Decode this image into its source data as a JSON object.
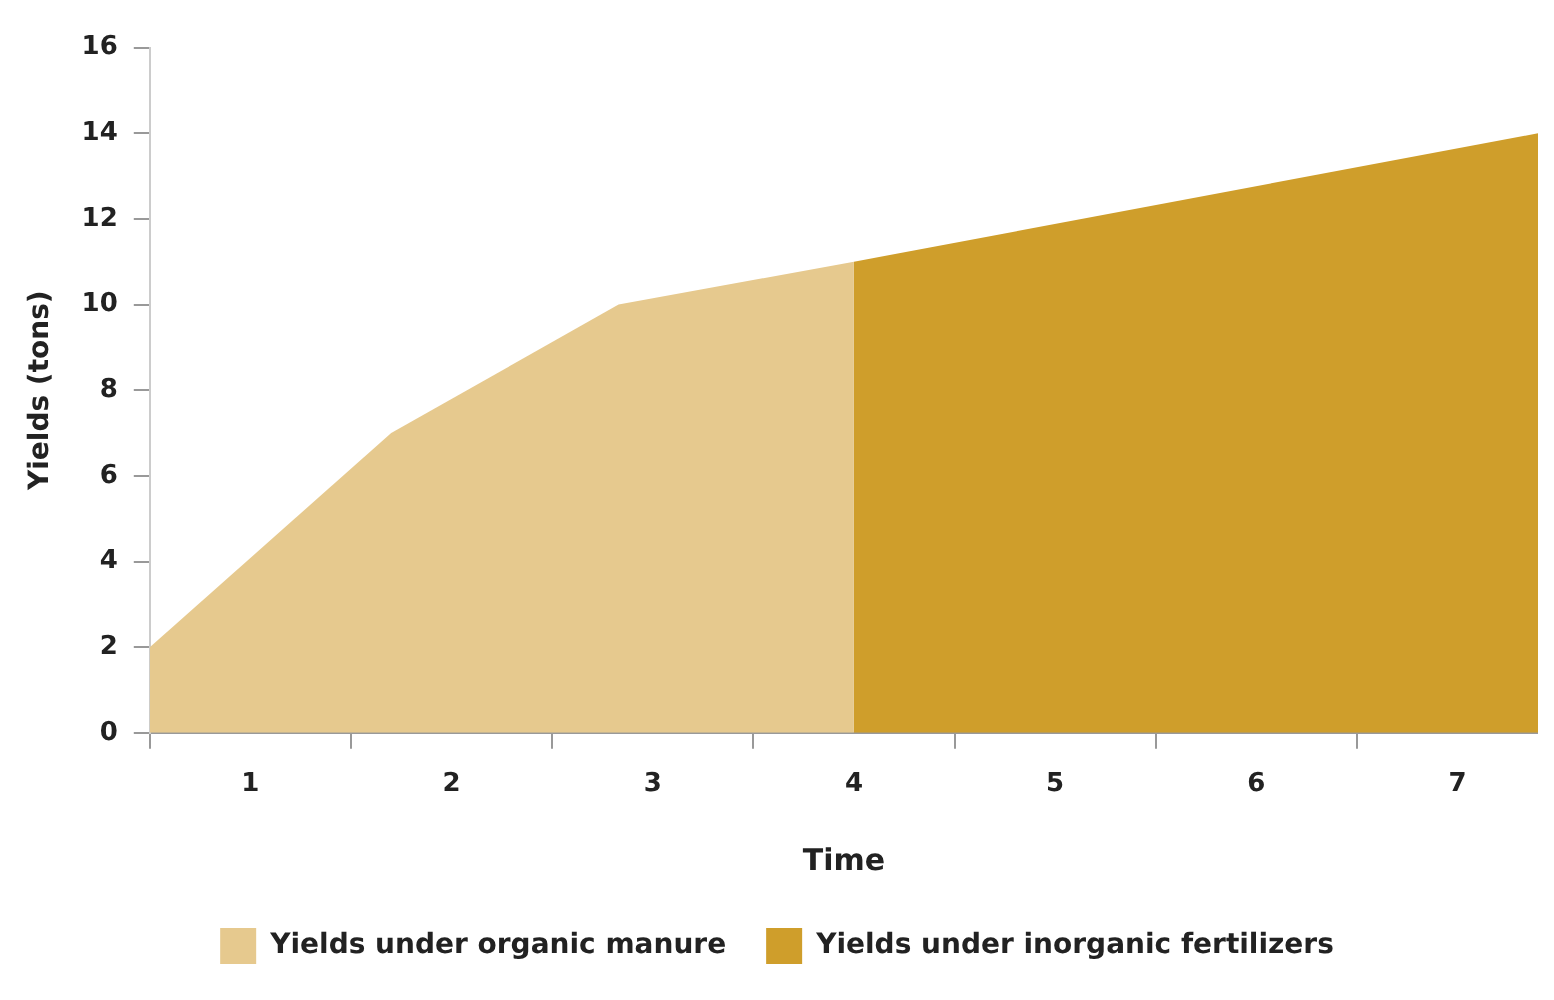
{
  "chart_data": {
    "type": "area",
    "xlabel": "Time",
    "ylabel": "Yields (tons)",
    "xlim": [
      0.5,
      7.4
    ],
    "xticks": [
      {
        "value": 0.5,
        "label": null
      },
      {
        "value": 1,
        "label": "1"
      },
      {
        "value": 1.5,
        "label": null
      },
      {
        "value": 2,
        "label": "2"
      },
      {
        "value": 2.5,
        "label": null
      },
      {
        "value": 3,
        "label": "3"
      },
      {
        "value": 3.5,
        "label": null
      },
      {
        "value": 4,
        "label": "4"
      },
      {
        "value": 4.5,
        "label": null
      },
      {
        "value": 5,
        "label": "5"
      },
      {
        "value": 5.5,
        "label": null
      },
      {
        "value": 6,
        "label": "6"
      },
      {
        "value": 6.5,
        "label": null
      },
      {
        "value": 7,
        "label": "7"
      }
    ],
    "ylim": [
      0,
      16
    ],
    "yticks": [
      0,
      2,
      4,
      6,
      8,
      10,
      12,
      14,
      16
    ],
    "grid": false,
    "legend": "bottom",
    "marker": "none",
    "series": [
      {
        "name": "Yields under organic manure",
        "color": "#e6c98e",
        "x": [
          0.5,
          1.7,
          2.83,
          4
        ],
        "values": [
          2,
          7,
          10,
          11
        ]
      },
      {
        "name": "Yields under inorganic fertilizers",
        "color": "#cf9e2b",
        "x": [
          4,
          7.4
        ],
        "values": [
          11,
          14
        ]
      }
    ]
  }
}
